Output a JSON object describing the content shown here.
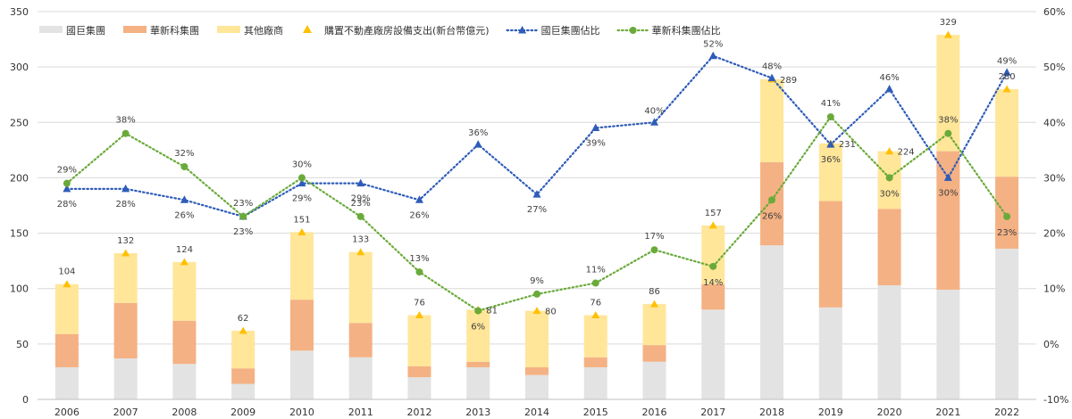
{
  "chart_data": {
    "type": "bar",
    "stacked": true,
    "categories": [
      "2006",
      "2007",
      "2008",
      "2009",
      "2010",
      "2011",
      "2012",
      "2013",
      "2014",
      "2015",
      "2016",
      "2017",
      "2018",
      "2019",
      "2020",
      "2021",
      "2022"
    ],
    "series": [
      {
        "name": "國巨集團",
        "kind": "bar",
        "color": "#e3e3e3",
        "values": [
          29,
          37,
          32,
          14,
          44,
          38,
          20,
          29,
          22,
          29,
          34,
          81,
          139,
          83,
          103,
          99,
          136
        ]
      },
      {
        "name": "華新科集團",
        "kind": "bar",
        "color": "#f4b183",
        "values": [
          30,
          50,
          39,
          14,
          46,
          31,
          10,
          5,
          7,
          9,
          15,
          23,
          75,
          96,
          69,
          125,
          65
        ]
      },
      {
        "name": "其他廠商",
        "kind": "bar",
        "color": "#ffe699",
        "values": [
          45,
          45,
          53,
          34,
          61,
          64,
          46,
          47,
          51,
          38,
          37,
          53,
          75,
          52,
          52,
          105,
          79
        ]
      },
      {
        "name": "購置不動產廠房設備支出(新台幣億元)",
        "kind": "marker",
        "color": "#ffc000",
        "values": [
          104,
          132,
          124,
          62,
          151,
          133,
          76,
          81,
          80,
          76,
          86,
          157,
          289,
          231,
          224,
          329,
          280
        ],
        "labels": [
          "104",
          "132",
          "124",
          "62",
          "151",
          "133",
          "76",
          "81",
          "80",
          "76",
          "86",
          "157",
          "289",
          "231",
          "224",
          "329",
          "280"
        ]
      },
      {
        "name": "國巨集團佔比",
        "kind": "line",
        "axis": "right",
        "color": "#2e5cb8",
        "values": [
          28,
          28,
          26,
          23,
          29,
          29,
          26,
          36,
          27,
          39,
          40,
          52,
          48,
          36,
          46,
          30,
          49
        ],
        "labels": [
          "28%",
          "28%",
          "26%",
          "23%",
          "29%",
          "29%",
          "26%",
          "36%",
          "27%",
          "39%",
          "40%",
          "52%",
          "48%",
          "36%",
          "46%",
          "30%",
          "49%"
        ]
      },
      {
        "name": "華新科集團佔比",
        "kind": "line",
        "axis": "right",
        "color": "#6aaa3a",
        "values": [
          29,
          38,
          32,
          23,
          30,
          23,
          13,
          6,
          9,
          11,
          17,
          14,
          26,
          41,
          30,
          38,
          23
        ],
        "labels": [
          "29%",
          "38%",
          "32%",
          "23%",
          "30%",
          "23%",
          "13%",
          "6%",
          "9%",
          "11%",
          "17%",
          "14%",
          "26%",
          "41%",
          "30%",
          "38%",
          "23%"
        ]
      }
    ],
    "ylim": [
      0,
      350
    ],
    "yticks": [
      "0",
      "50",
      "100",
      "150",
      "200",
      "250",
      "300",
      "350"
    ],
    "y2lim": [
      -10,
      60
    ],
    "y2ticks": [
      "-10%",
      "0%",
      "10%",
      "20%",
      "30%",
      "40%",
      "50%",
      "60%"
    ],
    "grid": true,
    "legend": "top-left"
  }
}
